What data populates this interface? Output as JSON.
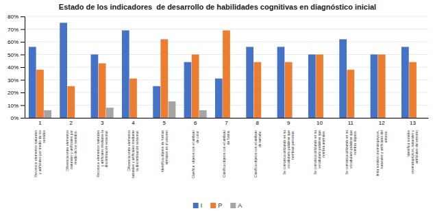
{
  "chart_data": {
    "type": "bar",
    "title": "Estado de los indicadores  de desarrollo de habilidades cognitivas en diagnóstico inicial",
    "categories": [
      "1",
      "2",
      "3",
      "4",
      "5",
      "6",
      "7",
      "8",
      "9",
      "10",
      "11",
      "12",
      "13"
    ],
    "annotations": [
      "Reconoce elementos naturales\ny artificiales por medio de los\nsentidos",
      "Diferencia entre elementos\nnaturales y artificiales por\nmedio de los sentidos.",
      "Reconoce elementos naturales\ny artificiales mediante la\ndiscriminación sensorial.",
      "Diferencia entre elementos\nnaturales y artificiales mediante\nla discriminación sensorial.",
      "Identifica objetos de formas\nsimilares en el entorno",
      "Clasifica  objetos con el atributo\nde color.",
      "Clasifica objetos con el atributo\nde forma.",
      "Clasifica objetos con el atributo\nde tamaño.",
      "Se comunica utilizando en su\nvocabulario palabras que\nnombran personas.",
      "Se comunica utilizando en su\nvocabulario palabras que\nnombra animales.",
      "Se comunica utilizando en su\nvocabulario palabras que\nnombra objetos.",
      "Imita sonidos onomatopéycos,\nnaturales y artificiales del\nentorno.",
      "Identifica sonidos\nonomatopéyicos, naturales y\nartificiales del entorno"
    ],
    "series": [
      {
        "name": "I",
        "color": "#4472c4",
        "values": [
          56,
          75,
          50,
          69,
          25,
          44,
          31,
          56,
          56,
          50,
          62,
          50,
          56
        ]
      },
      {
        "name": "P",
        "color": "#ed7d31",
        "values": [
          38,
          25,
          43,
          31,
          62,
          50,
          69,
          44,
          44,
          50,
          38,
          50,
          44
        ]
      },
      {
        "name": "A",
        "color": "#a5a5a5",
        "values": [
          6,
          0,
          8,
          0,
          13,
          6,
          0,
          0,
          0,
          0,
          0,
          0,
          0
        ]
      }
    ],
    "ylim": [
      0,
      80
    ],
    "yticks": [
      {
        "value": 0,
        "label": "0%"
      },
      {
        "value": 10,
        "label": "10%"
      },
      {
        "value": 20,
        "label": "20%"
      },
      {
        "value": 30,
        "label": "30%"
      },
      {
        "value": 40,
        "label": "40%"
      },
      {
        "value": 50,
        "label": "50%"
      },
      {
        "value": 60,
        "label": "60%"
      },
      {
        "value": 70,
        "label": "70%"
      },
      {
        "value": 80,
        "label": "80%"
      }
    ],
    "grid": true,
    "legend": "bottom"
  }
}
